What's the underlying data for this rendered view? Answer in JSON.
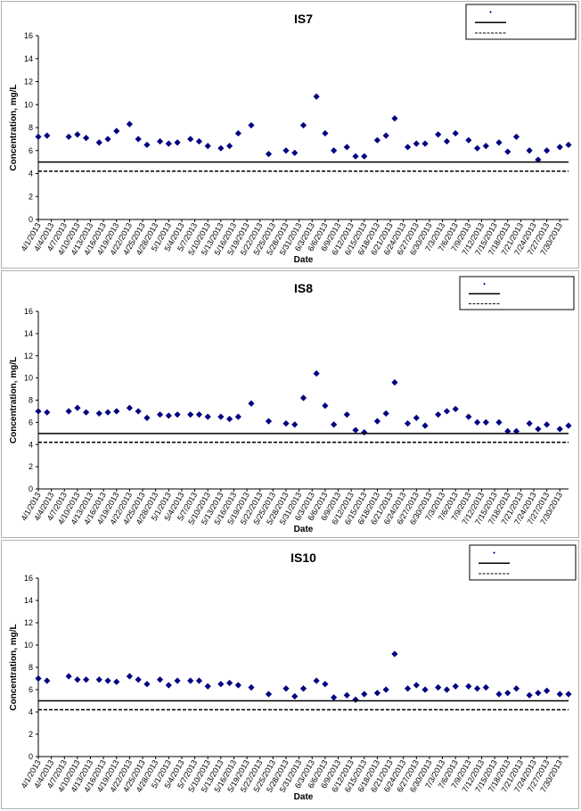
{
  "chart_data": [
    {
      "type": "scatter",
      "title": "IS7",
      "xlabel": "Date",
      "ylabel": "Concentration, mg/L",
      "ylim": [
        0,
        16
      ],
      "yticks": [
        "0",
        "2",
        "4",
        "6",
        "8",
        "10",
        "12",
        "14",
        "16"
      ],
      "xlim": [
        "4/1/2013",
        "8/1/2013"
      ],
      "xticks": [
        "4/1/2013",
        "4/4/2013",
        "4/7/2013",
        "4/10/2013",
        "4/13/2013",
        "4/16/2013",
        "4/19/2013",
        "4/22/2013",
        "4/25/2013",
        "4/28/2013",
        "5/1/2013",
        "5/4/2013",
        "5/7/2013",
        "5/10/2013",
        "5/13/2013",
        "5/16/2013",
        "5/19/2013",
        "5/22/2013",
        "5/25/2013",
        "5/28/2013",
        "5/31/2013",
        "6/3/2013",
        "6/6/2013",
        "6/9/2013",
        "6/12/2013",
        "6/15/2013",
        "6/18/2013",
        "6/21/2013",
        "6/24/2013",
        "6/27/2013",
        "6/30/2013",
        "7/3/2013",
        "7/6/2013",
        "7/9/2013",
        "7/12/2013",
        "7/15/2013",
        "7/18/2013",
        "7/21/2013",
        "7/24/2013",
        "7/27/2013",
        "7/30/2013"
      ],
      "series": [
        {
          "marker": "diamond",
          "color": "#000080",
          "points": [
            {
              "x": "4/1/2013",
              "y": 7.2
            },
            {
              "x": "4/3/2013",
              "y": 7.3
            },
            {
              "x": "4/8/2013",
              "y": 7.2
            },
            {
              "x": "4/10/2013",
              "y": 7.4
            },
            {
              "x": "4/12/2013",
              "y": 7.1
            },
            {
              "x": "4/15/2013",
              "y": 6.7
            },
            {
              "x": "4/17/2013",
              "y": 7.0
            },
            {
              "x": "4/19/2013",
              "y": 7.7
            },
            {
              "x": "4/22/2013",
              "y": 8.3
            },
            {
              "x": "4/24/2013",
              "y": 7.0
            },
            {
              "x": "4/26/2013",
              "y": 6.5
            },
            {
              "x": "4/29/2013",
              "y": 6.8
            },
            {
              "x": "5/1/2013",
              "y": 6.6
            },
            {
              "x": "5/3/2013",
              "y": 6.7
            },
            {
              "x": "5/6/2013",
              "y": 7.0
            },
            {
              "x": "5/8/2013",
              "y": 6.8
            },
            {
              "x": "5/10/2013",
              "y": 6.4
            },
            {
              "x": "5/13/2013",
              "y": 6.2
            },
            {
              "x": "5/15/2013",
              "y": 6.4
            },
            {
              "x": "5/17/2013",
              "y": 7.5
            },
            {
              "x": "5/20/2013",
              "y": 8.2
            },
            {
              "x": "5/24/2013",
              "y": 5.7
            },
            {
              "x": "5/28/2013",
              "y": 6.0
            },
            {
              "x": "5/30/2013",
              "y": 5.8
            },
            {
              "x": "6/1/2013",
              "y": 8.2
            },
            {
              "x": "6/4/2013",
              "y": 10.7
            },
            {
              "x": "6/6/2013",
              "y": 7.5
            },
            {
              "x": "6/8/2013",
              "y": 6.0
            },
            {
              "x": "6/11/2013",
              "y": 6.3
            },
            {
              "x": "6/13/2013",
              "y": 5.5
            },
            {
              "x": "6/15/2013",
              "y": 5.5
            },
            {
              "x": "6/18/2013",
              "y": 6.9
            },
            {
              "x": "6/20/2013",
              "y": 7.3
            },
            {
              "x": "6/22/2013",
              "y": 8.8
            },
            {
              "x": "6/25/2013",
              "y": 6.3
            },
            {
              "x": "6/27/2013",
              "y": 6.6
            },
            {
              "x": "6/29/2013",
              "y": 6.6
            },
            {
              "x": "7/2/2013",
              "y": 7.4
            },
            {
              "x": "7/4/2013",
              "y": 6.8
            },
            {
              "x": "7/6/2013",
              "y": 7.5
            },
            {
              "x": "7/9/2013",
              "y": 6.9
            },
            {
              "x": "7/11/2013",
              "y": 6.2
            },
            {
              "x": "7/13/2013",
              "y": 6.4
            },
            {
              "x": "7/16/2013",
              "y": 6.7
            },
            {
              "x": "7/18/2013",
              "y": 5.9
            },
            {
              "x": "7/20/2013",
              "y": 7.2
            },
            {
              "x": "7/23/2013",
              "y": 6.0
            },
            {
              "x": "7/25/2013",
              "y": 5.2
            },
            {
              "x": "7/27/2013",
              "y": 6.0
            },
            {
              "x": "7/30/2013",
              "y": 6.3
            },
            {
              "x": "8/1/2013",
              "y": 6.5
            }
          ]
        },
        {
          "line": "solid",
          "color": "#000000",
          "y": 5.0
        },
        {
          "line": "dashed",
          "color": "#000000",
          "y": 4.2
        }
      ],
      "legend": "top-right"
    },
    {
      "type": "scatter",
      "title": "IS8",
      "xlabel": "Date",
      "ylabel": "Concentration, mg/L",
      "ylim": [
        0,
        16
      ],
      "yticks": [
        "0",
        "2",
        "4",
        "6",
        "8",
        "10",
        "12",
        "14",
        "16"
      ],
      "xlim": [
        "4/1/2013",
        "8/1/2013"
      ],
      "xticks": [
        "4/1/2013",
        "4/4/2013",
        "4/7/2013",
        "4/10/2013",
        "4/13/2013",
        "4/16/2013",
        "4/19/2013",
        "4/22/2013",
        "4/25/2013",
        "4/28/2013",
        "5/1/2013",
        "5/4/2013",
        "5/7/2013",
        "5/10/2013",
        "5/13/2013",
        "5/16/2013",
        "5/19/2013",
        "5/22/2013",
        "5/25/2013",
        "5/28/2013",
        "5/31/2013",
        "6/3/2013",
        "6/6/2013",
        "6/9/2013",
        "6/12/2013",
        "6/15/2013",
        "6/18/2013",
        "6/21/2013",
        "6/24/2013",
        "6/27/2013",
        "6/30/2013",
        "7/3/2013",
        "7/6/2013",
        "7/9/2013",
        "7/12/2013",
        "7/15/2013",
        "7/18/2013",
        "7/21/2013",
        "7/24/2013",
        "7/27/2013",
        "7/30/2013"
      ],
      "series": [
        {
          "marker": "diamond",
          "color": "#000080",
          "points": [
            {
              "x": "4/1/2013",
              "y": 7.0
            },
            {
              "x": "4/3/2013",
              "y": 6.9
            },
            {
              "x": "4/8/2013",
              "y": 7.0
            },
            {
              "x": "4/10/2013",
              "y": 7.3
            },
            {
              "x": "4/12/2013",
              "y": 6.9
            },
            {
              "x": "4/15/2013",
              "y": 6.8
            },
            {
              "x": "4/17/2013",
              "y": 6.9
            },
            {
              "x": "4/19/2013",
              "y": 7.0
            },
            {
              "x": "4/22/2013",
              "y": 7.3
            },
            {
              "x": "4/24/2013",
              "y": 7.0
            },
            {
              "x": "4/26/2013",
              "y": 6.4
            },
            {
              "x": "4/29/2013",
              "y": 6.7
            },
            {
              "x": "5/1/2013",
              "y": 6.6
            },
            {
              "x": "5/3/2013",
              "y": 6.7
            },
            {
              "x": "5/6/2013",
              "y": 6.7
            },
            {
              "x": "5/8/2013",
              "y": 6.7
            },
            {
              "x": "5/10/2013",
              "y": 6.5
            },
            {
              "x": "5/13/2013",
              "y": 6.5
            },
            {
              "x": "5/15/2013",
              "y": 6.3
            },
            {
              "x": "5/17/2013",
              "y": 6.5
            },
            {
              "x": "5/20/2013",
              "y": 7.7
            },
            {
              "x": "5/24/2013",
              "y": 6.1
            },
            {
              "x": "5/28/2013",
              "y": 5.9
            },
            {
              "x": "5/30/2013",
              "y": 5.8
            },
            {
              "x": "6/1/2013",
              "y": 8.2
            },
            {
              "x": "6/4/2013",
              "y": 10.4
            },
            {
              "x": "6/6/2013",
              "y": 7.5
            },
            {
              "x": "6/8/2013",
              "y": 5.8
            },
            {
              "x": "6/11/2013",
              "y": 6.7
            },
            {
              "x": "6/13/2013",
              "y": 5.3
            },
            {
              "x": "6/15/2013",
              "y": 5.1
            },
            {
              "x": "6/18/2013",
              "y": 6.1
            },
            {
              "x": "6/20/2013",
              "y": 6.8
            },
            {
              "x": "6/22/2013",
              "y": 9.6
            },
            {
              "x": "6/25/2013",
              "y": 5.9
            },
            {
              "x": "6/27/2013",
              "y": 6.4
            },
            {
              "x": "6/29/2013",
              "y": 5.7
            },
            {
              "x": "7/2/2013",
              "y": 6.7
            },
            {
              "x": "7/4/2013",
              "y": 7.0
            },
            {
              "x": "7/6/2013",
              "y": 7.2
            },
            {
              "x": "7/9/2013",
              "y": 6.5
            },
            {
              "x": "7/11/2013",
              "y": 6.0
            },
            {
              "x": "7/13/2013",
              "y": 6.0
            },
            {
              "x": "7/16/2013",
              "y": 6.0
            },
            {
              "x": "7/18/2013",
              "y": 5.2
            },
            {
              "x": "7/20/2013",
              "y": 5.2
            },
            {
              "x": "7/23/2013",
              "y": 5.9
            },
            {
              "x": "7/25/2013",
              "y": 5.4
            },
            {
              "x": "7/27/2013",
              "y": 5.8
            },
            {
              "x": "7/30/2013",
              "y": 5.4
            },
            {
              "x": "8/1/2013",
              "y": 5.7
            }
          ]
        },
        {
          "line": "solid",
          "color": "#000000",
          "y": 5.0
        },
        {
          "line": "dashed",
          "color": "#000000",
          "y": 4.2
        }
      ],
      "legend": "top-right"
    },
    {
      "type": "scatter",
      "title": "IS10",
      "xlabel": "Date",
      "ylabel": "Concentration, mg/L",
      "ylim": [
        0,
        16
      ],
      "yticks": [
        "0",
        "2",
        "4",
        "6",
        "8",
        "10",
        "12",
        "14",
        "16"
      ],
      "xlim": [
        "4/1/2013",
        "8/1/2013"
      ],
      "xticks": [
        "4/1/2013",
        "4/4/2013",
        "4/7/2013",
        "4/10/2013",
        "4/13/2013",
        "4/16/2013",
        "4/19/2013",
        "4/22/2013",
        "4/25/2013",
        "4/28/2013",
        "5/1/2013",
        "5/4/2013",
        "5/7/2013",
        "5/10/2013",
        "5/13/2013",
        "5/16/2013",
        "5/19/2013",
        "5/22/2013",
        "5/25/2013",
        "5/28/2013",
        "5/31/2013",
        "6/3/2013",
        "6/6/2013",
        "6/9/2013",
        "6/12/2013",
        "6/15/2013",
        "6/18/2013",
        "6/21/2013",
        "6/24/2013",
        "6/27/2013",
        "6/30/2013",
        "7/3/2013",
        "7/6/2013",
        "7/9/2013",
        "7/12/2013",
        "7/15/2013",
        "7/18/2013",
        "7/21/2013",
        "7/24/2013",
        "7/27/2013",
        "7/30/2013"
      ],
      "series": [
        {
          "marker": "diamond",
          "color": "#000080",
          "points": [
            {
              "x": "4/1/2013",
              "y": 7.0
            },
            {
              "x": "4/3/2013",
              "y": 6.8
            },
            {
              "x": "4/8/2013",
              "y": 7.2
            },
            {
              "x": "4/10/2013",
              "y": 6.9
            },
            {
              "x": "4/12/2013",
              "y": 6.9
            },
            {
              "x": "4/15/2013",
              "y": 6.9
            },
            {
              "x": "4/17/2013",
              "y": 6.8
            },
            {
              "x": "4/19/2013",
              "y": 6.7
            },
            {
              "x": "4/22/2013",
              "y": 7.2
            },
            {
              "x": "4/24/2013",
              "y": 6.9
            },
            {
              "x": "4/26/2013",
              "y": 6.5
            },
            {
              "x": "4/29/2013",
              "y": 6.9
            },
            {
              "x": "5/1/2013",
              "y": 6.4
            },
            {
              "x": "5/3/2013",
              "y": 6.8
            },
            {
              "x": "5/6/2013",
              "y": 6.8
            },
            {
              "x": "5/8/2013",
              "y": 6.8
            },
            {
              "x": "5/10/2013",
              "y": 6.3
            },
            {
              "x": "5/13/2013",
              "y": 6.5
            },
            {
              "x": "5/15/2013",
              "y": 6.6
            },
            {
              "x": "5/17/2013",
              "y": 6.4
            },
            {
              "x": "5/20/2013",
              "y": 6.2
            },
            {
              "x": "5/24/2013",
              "y": 5.6
            },
            {
              "x": "5/28/2013",
              "y": 6.1
            },
            {
              "x": "5/30/2013",
              "y": 5.4
            },
            {
              "x": "6/1/2013",
              "y": 6.1
            },
            {
              "x": "6/4/2013",
              "y": 6.8
            },
            {
              "x": "6/6/2013",
              "y": 6.5
            },
            {
              "x": "6/8/2013",
              "y": 5.3
            },
            {
              "x": "6/11/2013",
              "y": 5.5
            },
            {
              "x": "6/13/2013",
              "y": 5.1
            },
            {
              "x": "6/15/2013",
              "y": 5.6
            },
            {
              "x": "6/18/2013",
              "y": 5.7
            },
            {
              "x": "6/20/2013",
              "y": 6.0
            },
            {
              "x": "6/22/2013",
              "y": 9.2
            },
            {
              "x": "6/25/2013",
              "y": 6.1
            },
            {
              "x": "6/27/2013",
              "y": 6.4
            },
            {
              "x": "6/29/2013",
              "y": 6.0
            },
            {
              "x": "7/2/2013",
              "y": 6.2
            },
            {
              "x": "7/4/2013",
              "y": 6.0
            },
            {
              "x": "7/6/2013",
              "y": 6.3
            },
            {
              "x": "7/9/2013",
              "y": 6.3
            },
            {
              "x": "7/11/2013",
              "y": 6.1
            },
            {
              "x": "7/13/2013",
              "y": 6.2
            },
            {
              "x": "7/16/2013",
              "y": 5.6
            },
            {
              "x": "7/18/2013",
              "y": 5.7
            },
            {
              "x": "7/20/2013",
              "y": 6.1
            },
            {
              "x": "7/23/2013",
              "y": 5.5
            },
            {
              "x": "7/25/2013",
              "y": 5.7
            },
            {
              "x": "7/27/2013",
              "y": 5.9
            },
            {
              "x": "7/30/2013",
              "y": 5.6
            },
            {
              "x": "8/1/2013",
              "y": 5.6
            }
          ]
        },
        {
          "line": "solid",
          "color": "#000000",
          "y": 5.0
        },
        {
          "line": "dashed",
          "color": "#000000",
          "y": 4.2
        }
      ],
      "legend": "top-right"
    }
  ]
}
